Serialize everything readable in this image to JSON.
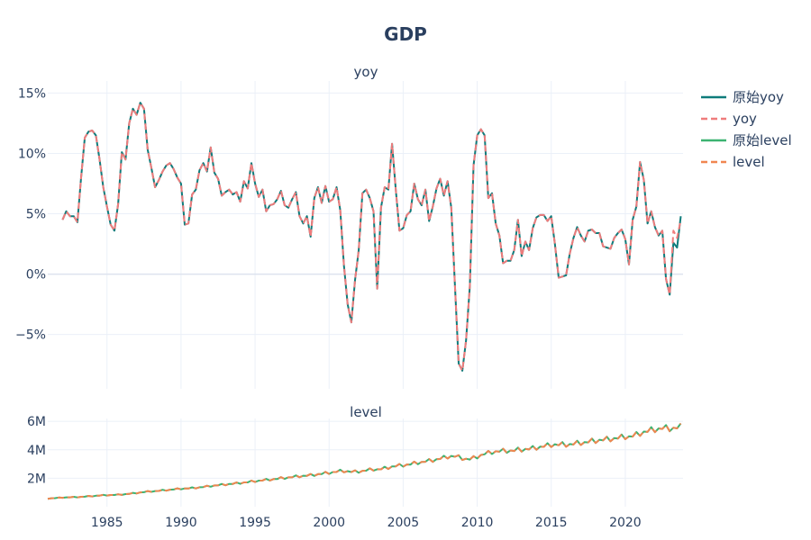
{
  "chart_data": {
    "type": "line",
    "title": "GDP",
    "colors": {
      "raw_yoy": "#0e7c7b",
      "yoy": "#ef7c7c",
      "raw_level": "#3cb371",
      "level": "#f08650"
    },
    "legend": {
      "placement": "top-right",
      "entries": [
        {
          "label": "原始yoy",
          "style": "solid",
          "color": "#0e7c7b"
        },
        {
          "label": "yoy",
          "style": "dash",
          "color": "#ef7c7c"
        },
        {
          "label": "原始level",
          "style": "solid",
          "color": "#3cb371"
        },
        {
          "label": "level",
          "style": "dash",
          "color": "#f08650"
        }
      ]
    },
    "x_ticks": [
      1985,
      1990,
      1995,
      2000,
      2005,
      2010,
      2015,
      2020
    ],
    "panels": [
      {
        "subtitle": "yoy",
        "ylim": [
          -0.095,
          0.16
        ],
        "y_ticks": [
          {
            "v": -0.05,
            "label": "−5%"
          },
          {
            "v": 0,
            "label": "0%"
          },
          {
            "v": 0.05,
            "label": "5%"
          },
          {
            "v": 0.1,
            "label": "10%"
          },
          {
            "v": 0.15,
            "label": "15%"
          }
        ],
        "xlim": [
          1981.0,
          2023.9
        ],
        "x": [
          1982.0,
          1982.25,
          1982.5,
          1982.75,
          1983.0,
          1983.25,
          1983.5,
          1983.75,
          1984.0,
          1984.25,
          1984.5,
          1984.75,
          1985.0,
          1985.25,
          1985.5,
          1985.75,
          1986.0,
          1986.25,
          1986.5,
          1986.75,
          1987.0,
          1987.25,
          1987.5,
          1987.75,
          1988.0,
          1988.25,
          1988.5,
          1988.75,
          1989.0,
          1989.25,
          1989.5,
          1989.75,
          1990.0,
          1990.25,
          1990.5,
          1990.75,
          1991.0,
          1991.25,
          1991.5,
          1991.75,
          1992.0,
          1992.25,
          1992.5,
          1992.75,
          1993.0,
          1993.25,
          1993.5,
          1993.75,
          1994.0,
          1994.25,
          1994.5,
          1994.75,
          1995.0,
          1995.25,
          1995.5,
          1995.75,
          1996.0,
          1996.25,
          1996.5,
          1996.75,
          1997.0,
          1997.25,
          1997.5,
          1997.75,
          1998.0,
          1998.25,
          1998.5,
          1998.75,
          1999.0,
          1999.25,
          1999.5,
          1999.75,
          2000.0,
          2000.25,
          2000.5,
          2000.75,
          2001.0,
          2001.25,
          2001.5,
          2001.75,
          2002.0,
          2002.25,
          2002.5,
          2002.75,
          2003.0,
          2003.25,
          2003.5,
          2003.75,
          2004.0,
          2004.25,
          2004.5,
          2004.75,
          2005.0,
          2005.25,
          2005.5,
          2005.75,
          2006.0,
          2006.25,
          2006.5,
          2006.75,
          2007.0,
          2007.25,
          2007.5,
          2007.75,
          2008.0,
          2008.25,
          2008.5,
          2008.75,
          2009.0,
          2009.25,
          2009.5,
          2009.75,
          2010.0,
          2010.25,
          2010.5,
          2010.75,
          2011.0,
          2011.25,
          2011.5,
          2011.75,
          2012.0,
          2012.25,
          2012.5,
          2012.75,
          2013.0,
          2013.25,
          2013.5,
          2013.75,
          2014.0,
          2014.25,
          2014.5,
          2014.75,
          2015.0,
          2015.25,
          2015.5,
          2015.75,
          2016.0,
          2016.25,
          2016.5,
          2016.75,
          2017.0,
          2017.25,
          2017.5,
          2017.75,
          2018.0,
          2018.25,
          2018.5,
          2018.75,
          2019.0,
          2019.25,
          2019.5,
          2019.75,
          2020.0,
          2020.25,
          2020.5,
          2020.75,
          2021.0,
          2021.25,
          2021.5,
          2021.75,
          2022.0,
          2022.25,
          2022.5,
          2022.75,
          2023.0,
          2023.25,
          2023.5,
          2023.75
        ],
        "series": [
          {
            "name": "原始yoy",
            "style": "solid",
            "color": "#0e7c7b",
            "values": [
              0.045,
              0.052,
              0.048,
              0.048,
              0.043,
              0.08,
              0.113,
              0.118,
              0.119,
              0.115,
              0.095,
              0.072,
              0.056,
              0.041,
              0.036,
              0.058,
              0.101,
              0.095,
              0.125,
              0.137,
              0.132,
              0.142,
              0.137,
              0.103,
              0.088,
              0.072,
              0.078,
              0.085,
              0.09,
              0.092,
              0.087,
              0.08,
              0.075,
              0.041,
              0.042,
              0.066,
              0.07,
              0.086,
              0.092,
              0.085,
              0.105,
              0.084,
              0.079,
              0.065,
              0.068,
              0.07,
              0.066,
              0.068,
              0.06,
              0.077,
              0.071,
              0.092,
              0.075,
              0.064,
              0.07,
              0.052,
              0.057,
              0.058,
              0.062,
              0.069,
              0.057,
              0.055,
              0.062,
              0.068,
              0.048,
              0.042,
              0.048,
              0.031,
              0.063,
              0.072,
              0.059,
              0.073,
              0.06,
              0.062,
              0.072,
              0.053,
              0.007,
              -0.025,
              -0.04,
              -0.005,
              0.02,
              0.067,
              0.07,
              0.063,
              0.052,
              -0.012,
              0.055,
              0.072,
              0.07,
              0.108,
              0.07,
              0.036,
              0.038,
              0.049,
              0.052,
              0.075,
              0.062,
              0.057,
              0.07,
              0.044,
              0.056,
              0.071,
              0.079,
              0.065,
              0.077,
              0.055,
              -0.01,
              -0.074,
              -0.08,
              -0.055,
              -0.01,
              0.09,
              0.115,
              0.12,
              0.115,
              0.063,
              0.067,
              0.042,
              0.032,
              0.009,
              0.011,
              0.011,
              0.02,
              0.045,
              0.015,
              0.027,
              0.02,
              0.038,
              0.047,
              0.049,
              0.049,
              0.044,
              0.048,
              0.025,
              -0.003,
              -0.002,
              -0.001,
              0.017,
              0.03,
              0.039,
              0.032,
              0.027,
              0.036,
              0.037,
              0.034,
              0.034,
              0.023,
              0.022,
              0.021,
              0.03,
              0.034,
              0.037,
              0.029,
              0.008,
              0.045,
              0.056,
              0.093,
              0.078,
              0.042,
              0.052,
              0.039,
              0.032,
              0.036,
              -0.004,
              -0.017,
              0.026,
              0.022,
              0.048
            ]
          },
          {
            "name": "yoy",
            "style": "dash",
            "color": "#ef7c7c",
            "values": [
              0.045,
              0.052,
              0.048,
              0.048,
              0.043,
              0.08,
              0.113,
              0.118,
              0.119,
              0.115,
              0.095,
              0.072,
              0.056,
              0.041,
              0.036,
              0.058,
              0.101,
              0.095,
              0.125,
              0.137,
              0.132,
              0.142,
              0.137,
              0.103,
              0.088,
              0.072,
              0.078,
              0.085,
              0.09,
              0.092,
              0.087,
              0.08,
              0.075,
              0.041,
              0.042,
              0.066,
              0.07,
              0.086,
              0.092,
              0.085,
              0.105,
              0.084,
              0.079,
              0.065,
              0.068,
              0.07,
              0.066,
              0.068,
              0.06,
              0.077,
              0.071,
              0.092,
              0.075,
              0.064,
              0.07,
              0.052,
              0.057,
              0.058,
              0.062,
              0.069,
              0.057,
              0.055,
              0.062,
              0.068,
              0.048,
              0.042,
              0.048,
              0.031,
              0.063,
              0.072,
              0.059,
              0.073,
              0.06,
              0.062,
              0.072,
              0.053,
              0.007,
              -0.025,
              -0.04,
              -0.005,
              0.02,
              0.067,
              0.07,
              0.063,
              0.052,
              -0.012,
              0.055,
              0.072,
              0.07,
              0.108,
              0.07,
              0.036,
              0.038,
              0.049,
              0.052,
              0.075,
              0.062,
              0.057,
              0.07,
              0.044,
              0.056,
              0.071,
              0.079,
              0.065,
              0.077,
              0.055,
              -0.01,
              -0.074,
              -0.08,
              -0.055,
              -0.01,
              0.09,
              0.115,
              0.12,
              0.115,
              0.063,
              0.067,
              0.042,
              0.032,
              0.009,
              0.011,
              0.011,
              0.02,
              0.045,
              0.015,
              0.027,
              0.02,
              0.038,
              0.047,
              0.049,
              0.049,
              0.044,
              0.048,
              0.025,
              -0.003,
              -0.002,
              -0.001,
              0.017,
              0.03,
              0.039,
              0.032,
              0.027,
              0.036,
              0.037,
              0.034,
              0.034,
              0.023,
              0.022,
              0.021,
              0.03,
              0.034,
              0.037,
              0.029,
              0.008,
              0.045,
              0.056,
              0.093,
              0.078,
              0.042,
              0.052,
              0.039,
              0.032,
              0.036,
              -0.004,
              -0.017,
              0.036,
              0.03,
              0.045
            ]
          }
        ]
      },
      {
        "subtitle": "level",
        "ylim": [
          0,
          6200000
        ],
        "y_ticks": [
          {
            "v": 2000000,
            "label": "2M"
          },
          {
            "v": 4000000,
            "label": "4M"
          },
          {
            "v": 6000000,
            "label": "6M"
          }
        ],
        "xlim": [
          1981.0,
          2023.9
        ],
        "series": [
          {
            "name": "原始level",
            "style": "solid",
            "color": "#3cb371"
          },
          {
            "name": "level",
            "style": "dash",
            "color": "#f08650"
          }
        ],
        "level_start_value": 700000,
        "seasonal_pattern": [
          0.965,
          1.005,
          0.99,
          1.04
        ]
      }
    ]
  }
}
